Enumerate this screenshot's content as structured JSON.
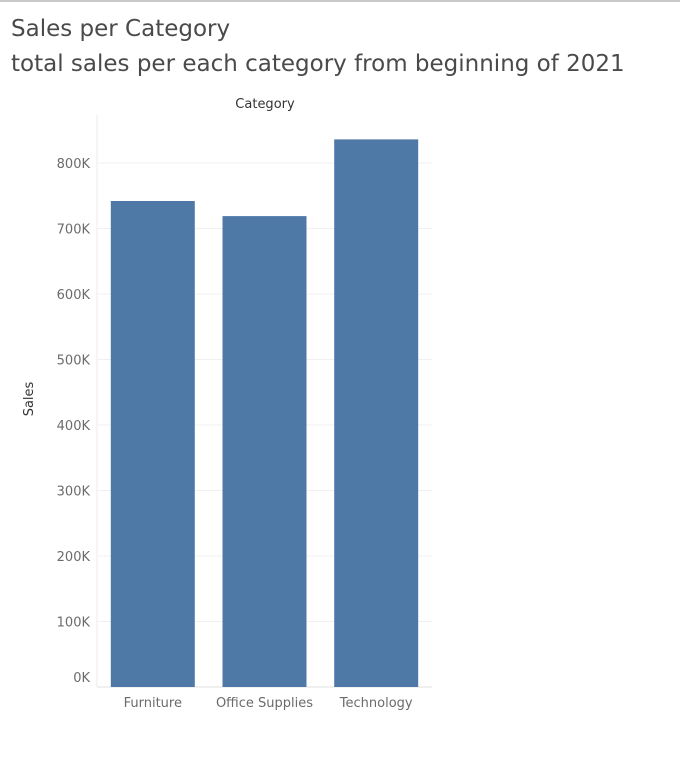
{
  "header": {
    "title": "Sales per Category",
    "subtitle": "total sales per each category from beginning of 2021"
  },
  "chart_data": {
    "type": "bar",
    "title": "Sales per Category",
    "subtitle": "total sales per each category from beginning of 2021",
    "xlabel": "Category",
    "ylabel": "Sales",
    "categories": [
      "Furniture",
      "Office Supplies",
      "Technology"
    ],
    "values": [
      742000,
      719000,
      836000
    ],
    "ylim": [
      0,
      800000
    ],
    "yticks": [
      0,
      100000,
      200000,
      300000,
      400000,
      500000,
      600000,
      700000,
      800000
    ],
    "ytick_labels": [
      "0K",
      "100K",
      "200K",
      "300K",
      "400K",
      "500K",
      "600K",
      "700K",
      "800K"
    ],
    "xlabel_position": "top",
    "grid": true,
    "bar_color": "#4e79a7",
    "gridline_color": "#f0f0f0"
  }
}
